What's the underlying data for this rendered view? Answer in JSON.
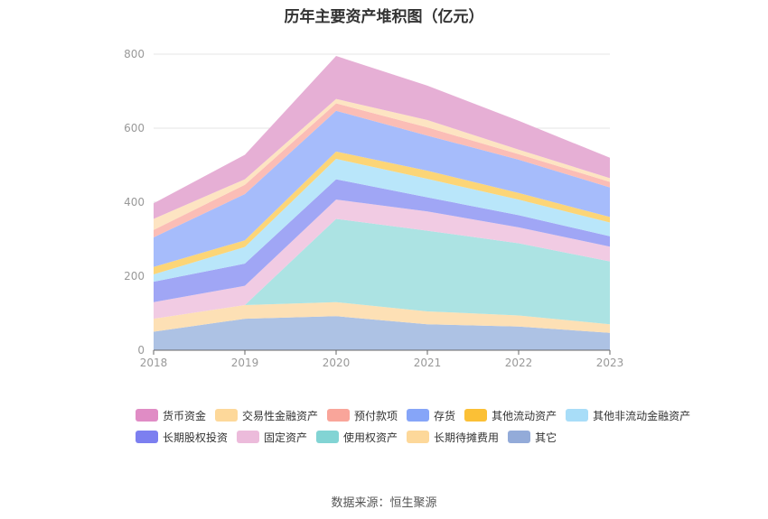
{
  "title": "历年主要资产堆积图（亿元）",
  "source": "数据来源：恒生聚源",
  "chart_data": {
    "type": "area",
    "stacked": true,
    "title": "历年主要资产堆积图（亿元）",
    "xlabel": "",
    "ylabel": "",
    "categories": [
      "2018",
      "2019",
      "2020",
      "2021",
      "2022",
      "2023"
    ],
    "ylim": [
      0,
      800
    ],
    "yticks": [
      0,
      200,
      400,
      600,
      800
    ],
    "grid": true,
    "legend_position": "bottom",
    "series": [
      {
        "name": "其它",
        "color": "#adc2e4",
        "values": [
          50,
          85,
          92,
          70,
          64,
          47
        ]
      },
      {
        "name": "长期待摊费用",
        "color": "#fde0b5",
        "values": [
          35,
          37,
          38,
          35,
          30,
          23
        ]
      },
      {
        "name": "使用权资产",
        "color": "#ace3e3",
        "values": [
          0,
          0,
          225,
          218,
          195,
          170
        ]
      },
      {
        "name": "固定资产",
        "color": "#f1cbe3",
        "values": [
          45,
          52,
          52,
          52,
          43,
          40
        ]
      },
      {
        "name": "长期股权投资",
        "color": "#a0a6f5",
        "values": [
          55,
          60,
          55,
          38,
          33,
          28
        ]
      },
      {
        "name": "其他非流动金融资产",
        "color": "#b9e6fa",
        "values": [
          20,
          45,
          55,
          50,
          42,
          37
        ]
      },
      {
        "name": "其他流动资产",
        "color": "#fcd577",
        "values": [
          20,
          18,
          20,
          22,
          18,
          15
        ]
      },
      {
        "name": "存货",
        "color": "#a6bcfb",
        "values": [
          80,
          125,
          110,
          95,
          90,
          80
        ]
      },
      {
        "name": "预付款项",
        "color": "#fbbdb6",
        "values": [
          20,
          25,
          20,
          22,
          15,
          15
        ]
      },
      {
        "name": "交易性金融资产",
        "color": "#fde4c2",
        "values": [
          30,
          15,
          12,
          20,
          12,
          10
        ]
      },
      {
        "name": "货币资金",
        "color": "#e6afd5",
        "values": [
          42,
          66,
          116,
          93,
          78,
          55
        ]
      }
    ]
  },
  "legend": [
    {
      "name": "货币资金",
      "color": "#e08cc5"
    },
    {
      "name": "交易性金融资产",
      "color": "#fdd89a"
    },
    {
      "name": "预付款项",
      "color": "#f9a59a"
    },
    {
      "name": "存货",
      "color": "#86a5f8"
    },
    {
      "name": "其他流动资产",
      "color": "#fbc036"
    },
    {
      "name": "其他非流动金融资产",
      "color": "#a8ddf8"
    },
    {
      "name": "长期股权投资",
      "color": "#7c7ff0"
    },
    {
      "name": "固定资产",
      "color": "#ecbbdb"
    },
    {
      "name": "使用权资产",
      "color": "#82d4d4"
    },
    {
      "name": "长期待摊费用",
      "color": "#fdd89a"
    },
    {
      "name": "其它",
      "color": "#93abd9"
    }
  ]
}
